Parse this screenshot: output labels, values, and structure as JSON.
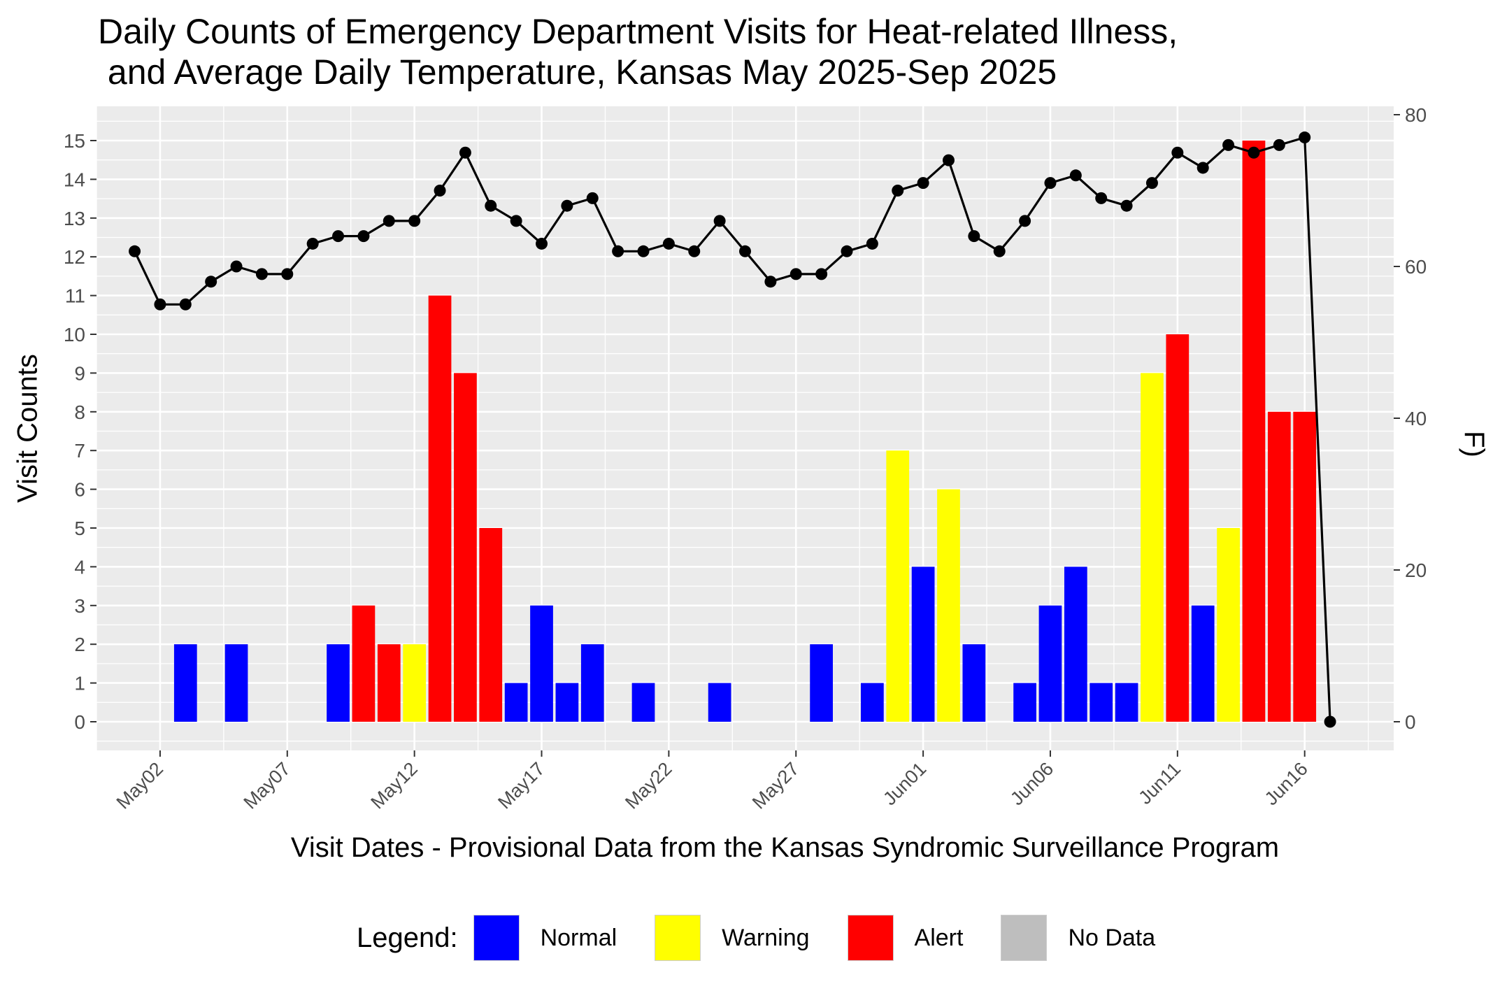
{
  "chart_data": {
    "type": "bar",
    "title": "Daily Counts of Emergency Department Visits for Heat-related Illness,",
    "subtitle": " and Average Daily Temperature, Kansas May 2025-Sep 2025",
    "xlabel": "Visit Dates - Provisional Data from the Kansas Syndromic Surveillance Program",
    "ylabel": "Visit Counts",
    "y2label": "Avg. Temperature ( ° F)",
    "ylim": [
      0,
      15
    ],
    "y2lim": [
      0,
      80
    ],
    "yticks": [
      "0",
      "1",
      "2",
      "3",
      "4",
      "5",
      "6",
      "7",
      "8",
      "9",
      "10",
      "11",
      "12",
      "13",
      "14",
      "15"
    ],
    "y2ticks": [
      "0",
      "20",
      "40",
      "60",
      "80"
    ],
    "xticks": [
      "May02",
      "May07",
      "May12",
      "May17",
      "May22",
      "May27",
      "Jun01",
      "Jun06",
      "Jun11",
      "Jun16"
    ],
    "legend_position": "bottom",
    "bars": [
      {
        "date": "2025-05-03",
        "count": 2,
        "status": "Normal"
      },
      {
        "date": "2025-05-05",
        "count": 2,
        "status": "Normal"
      },
      {
        "date": "2025-05-09",
        "count": 2,
        "status": "Normal"
      },
      {
        "date": "2025-05-10",
        "count": 3,
        "status": "Alert"
      },
      {
        "date": "2025-05-11",
        "count": 2,
        "status": "Alert"
      },
      {
        "date": "2025-05-12",
        "count": 2,
        "status": "Warning"
      },
      {
        "date": "2025-05-13",
        "count": 11,
        "status": "Alert"
      },
      {
        "date": "2025-05-14",
        "count": 9,
        "status": "Alert"
      },
      {
        "date": "2025-05-15",
        "count": 5,
        "status": "Alert"
      },
      {
        "date": "2025-05-16",
        "count": 1,
        "status": "Normal"
      },
      {
        "date": "2025-05-17",
        "count": 3,
        "status": "Normal"
      },
      {
        "date": "2025-05-18",
        "count": 1,
        "status": "Normal"
      },
      {
        "date": "2025-05-19",
        "count": 2,
        "status": "Normal"
      },
      {
        "date": "2025-05-21",
        "count": 1,
        "status": "Normal"
      },
      {
        "date": "2025-05-24",
        "count": 1,
        "status": "Normal"
      },
      {
        "date": "2025-05-28",
        "count": 2,
        "status": "Normal"
      },
      {
        "date": "2025-05-30",
        "count": 1,
        "status": "Normal"
      },
      {
        "date": "2025-05-31",
        "count": 7,
        "status": "Warning"
      },
      {
        "date": "2025-06-01",
        "count": 4,
        "status": "Normal"
      },
      {
        "date": "2025-06-02",
        "count": 6,
        "status": "Warning"
      },
      {
        "date": "2025-06-03",
        "count": 2,
        "status": "Normal"
      },
      {
        "date": "2025-06-05",
        "count": 1,
        "status": "Normal"
      },
      {
        "date": "2025-06-06",
        "count": 3,
        "status": "Normal"
      },
      {
        "date": "2025-06-07",
        "count": 4,
        "status": "Normal"
      },
      {
        "date": "2025-06-08",
        "count": 1,
        "status": "Normal"
      },
      {
        "date": "2025-06-09",
        "count": 1,
        "status": "Normal"
      },
      {
        "date": "2025-06-10",
        "count": 9,
        "status": "Warning"
      },
      {
        "date": "2025-06-11",
        "count": 10,
        "status": "Alert"
      },
      {
        "date": "2025-06-12",
        "count": 3,
        "status": "Normal"
      },
      {
        "date": "2025-06-13",
        "count": 5,
        "status": "Warning"
      },
      {
        "date": "2025-06-14",
        "count": 15,
        "status": "Alert"
      },
      {
        "date": "2025-06-15",
        "count": 8,
        "status": "Alert"
      },
      {
        "date": "2025-06-16",
        "count": 8,
        "status": "Alert"
      }
    ],
    "temperature": {
      "dates": [
        "2025-05-01",
        "2025-05-02",
        "2025-05-03",
        "2025-05-04",
        "2025-05-05",
        "2025-05-06",
        "2025-05-07",
        "2025-05-08",
        "2025-05-09",
        "2025-05-10",
        "2025-05-11",
        "2025-05-12",
        "2025-05-13",
        "2025-05-14",
        "2025-05-15",
        "2025-05-16",
        "2025-05-17",
        "2025-05-18",
        "2025-05-19",
        "2025-05-20",
        "2025-05-21",
        "2025-05-22",
        "2025-05-23",
        "2025-05-24",
        "2025-05-25",
        "2025-05-26",
        "2025-05-27",
        "2025-05-28",
        "2025-05-29",
        "2025-05-30",
        "2025-05-31",
        "2025-06-01",
        "2025-06-02",
        "2025-06-03",
        "2025-06-04",
        "2025-06-05",
        "2025-06-06",
        "2025-06-07",
        "2025-06-08",
        "2025-06-09",
        "2025-06-10",
        "2025-06-11",
        "2025-06-12",
        "2025-06-13",
        "2025-06-14",
        "2025-06-15",
        "2025-06-16",
        "2025-06-17"
      ],
      "values": [
        62,
        55,
        55,
        58,
        60,
        59,
        59,
        63,
        64,
        64,
        66,
        66,
        70,
        75,
        68,
        66,
        63,
        68,
        69,
        62,
        62,
        63,
        62,
        66,
        62,
        58,
        59,
        59,
        62,
        63,
        70,
        71,
        74,
        64,
        62,
        66,
        71,
        72,
        69,
        68,
        71,
        75,
        73,
        76,
        75,
        76,
        77,
        0
      ]
    },
    "legend": {
      "title": "Legend:",
      "items": [
        {
          "label": "Normal",
          "color": "#0000ff"
        },
        {
          "label": "Warning",
          "color": "#ffff00"
        },
        {
          "label": "Alert",
          "color": "#ff0000"
        },
        {
          "label": "No Data",
          "color": "#bebebe"
        }
      ]
    },
    "colors": {
      "panel": "#ebebeb",
      "grid": "#ffffff",
      "line": "#000000"
    }
  }
}
